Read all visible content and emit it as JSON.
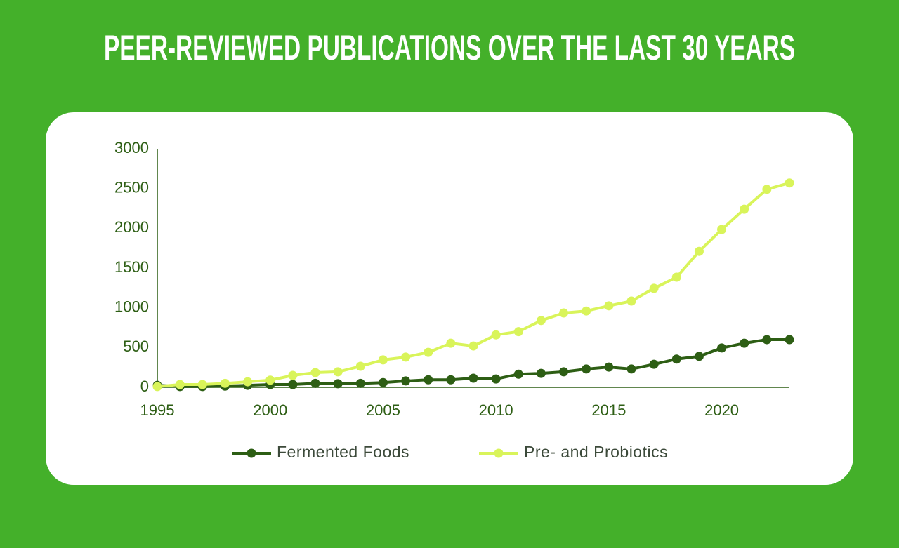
{
  "chart_data": {
    "type": "line",
    "title": "PEER-REVIEWED PUBLICATIONS OVER THE LAST 30 YEARS",
    "x": [
      1995,
      1996,
      1997,
      1998,
      1999,
      2000,
      2001,
      2002,
      2003,
      2004,
      2005,
      2006,
      2007,
      2008,
      2009,
      2010,
      2011,
      2012,
      2013,
      2014,
      2015,
      2016,
      2017,
      2018,
      2019,
      2020,
      2021,
      2022,
      2023
    ],
    "series": [
      {
        "name": "Fermented Foods",
        "color": "#2d5e14",
        "values": [
          25,
          10,
          10,
          15,
          25,
          35,
          35,
          50,
          45,
          50,
          60,
          80,
          95,
          95,
          115,
          105,
          165,
          175,
          195,
          230,
          255,
          230,
          290,
          355,
          390,
          495,
          555,
          600,
          600
        ]
      },
      {
        "name": "Pre- and Probiotics",
        "color": "#d9f45a",
        "values": [
          10,
          35,
          35,
          50,
          70,
          90,
          150,
          185,
          195,
          265,
          345,
          380,
          440,
          555,
          520,
          660,
          700,
          840,
          935,
          960,
          1025,
          1085,
          1245,
          1385,
          1710,
          1985,
          2240,
          2490,
          2570
        ]
      }
    ],
    "xlim": [
      1995,
      2023
    ],
    "xticks": [
      1995,
      2000,
      2005,
      2010,
      2015,
      2020
    ],
    "ylim": [
      0,
      3000
    ],
    "yticks": [
      0,
      500,
      1000,
      1500,
      2000,
      2500,
      3000
    ],
    "grid": false,
    "legend": "bottom"
  }
}
